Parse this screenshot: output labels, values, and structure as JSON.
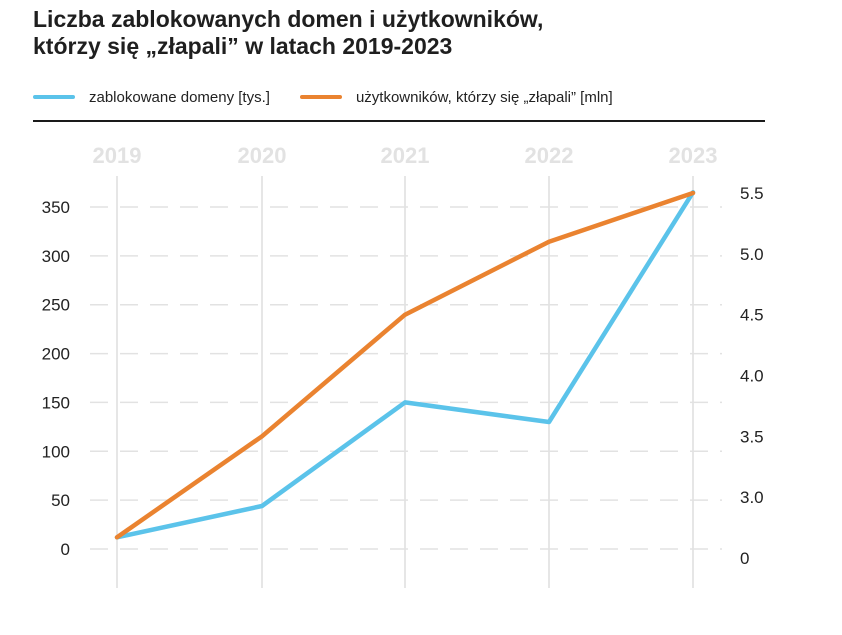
{
  "chart_data": {
    "type": "line",
    "title_line1": "Liczba zablokowanych domen i użytkowników,",
    "title_line2": "którzy się „złapali” w latach 2019-2023",
    "categories": [
      "2019",
      "2020",
      "2021",
      "2022",
      "2023"
    ],
    "series": [
      {
        "name": "zablokowane domeny [tys.]",
        "axis": "left",
        "color": "#5bc3ea",
        "values": [
          12,
          44,
          150,
          130,
          365
        ]
      },
      {
        "name": "użytkowników, którzy się „złapali” [mln]",
        "axis": "right",
        "color": "#ea8330",
        "values": [
          2.67,
          3.5,
          4.5,
          5.1,
          5.5
        ]
      }
    ],
    "y_left": {
      "ticks": [
        "0",
        "50",
        "100",
        "150",
        "200",
        "250",
        "300",
        "350"
      ],
      "tick_values": [
        0,
        50,
        100,
        150,
        200,
        250,
        300,
        350
      ],
      "ylim": [
        0,
        365
      ]
    },
    "y_right": {
      "ticks": [
        "0",
        "3.0",
        "3.5",
        "4.0",
        "4.5",
        "5.0",
        "5.5"
      ],
      "tick_values": [
        2.5,
        3.0,
        3.5,
        4.0,
        4.5,
        5.0,
        5.5
      ],
      "ylim": [
        2.5,
        5.5
      ]
    },
    "grid": "dashed",
    "legend": "top-left"
  }
}
